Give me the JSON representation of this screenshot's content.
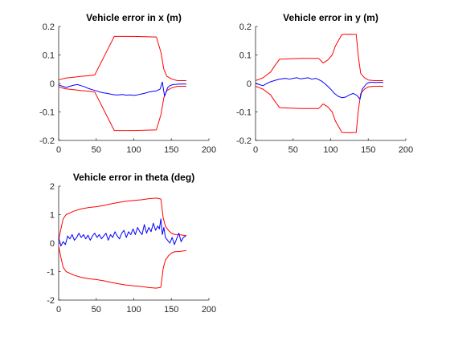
{
  "chart_data": [
    {
      "type": "line",
      "title": "Vehicle error in x (m)",
      "xlabel": "",
      "ylabel": "",
      "xlim": [
        0,
        200
      ],
      "ylim": [
        -0.2,
        0.2
      ],
      "xticks": [
        0,
        50,
        100,
        150,
        200
      ],
      "yticks": [
        0.2,
        0.1,
        0,
        -0.1,
        -0.2
      ],
      "xtick_labels": [
        "0",
        "50",
        "100",
        "150",
        "200"
      ],
      "ytick_labels": [
        "0.2",
        "0.1",
        "0",
        "-0.1",
        "-0.2"
      ],
      "grid": false,
      "series": [
        {
          "color": "#ff0000",
          "x": [
            0,
            5,
            10,
            20,
            30,
            40,
            48,
            74,
            100,
            130,
            136,
            140,
            144,
            150,
            158,
            170
          ],
          "y": [
            0.012,
            0.016,
            0.019,
            0.022,
            0.025,
            0.027,
            0.03,
            0.165,
            0.165,
            0.163,
            0.11,
            0.05,
            0.025,
            0.016,
            0.01,
            0.01
          ]
        },
        {
          "color": "#ff0000",
          "x": [
            0,
            5,
            10,
            20,
            30,
            40,
            48,
            74,
            100,
            130,
            136,
            140,
            144,
            150,
            158,
            170
          ],
          "y": [
            -0.012,
            -0.016,
            -0.019,
            -0.022,
            -0.025,
            -0.027,
            -0.03,
            -0.165,
            -0.165,
            -0.163,
            -0.11,
            -0.05,
            -0.025,
            -0.016,
            -0.01,
            -0.01
          ]
        },
        {
          "color": "#0000ff",
          "x": [
            0,
            5,
            10,
            15,
            20,
            25,
            30,
            35,
            40,
            45,
            50,
            55,
            60,
            65,
            70,
            75,
            80,
            85,
            90,
            95,
            100,
            105,
            110,
            115,
            120,
            125,
            130,
            135,
            138,
            141,
            143,
            145,
            148,
            152,
            156,
            160,
            165,
            170
          ],
          "y": [
            -0.005,
            -0.01,
            -0.014,
            -0.01,
            -0.006,
            -0.004,
            -0.008,
            -0.012,
            -0.018,
            -0.022,
            -0.026,
            -0.03,
            -0.033,
            -0.035,
            -0.038,
            -0.04,
            -0.04,
            -0.039,
            -0.041,
            -0.04,
            -0.042,
            -0.04,
            -0.037,
            -0.034,
            -0.03,
            -0.028,
            -0.026,
            -0.02,
            0.005,
            -0.045,
            -0.03,
            -0.015,
            -0.008,
            -0.004,
            -0.003,
            -0.002,
            -0.002,
            -0.002
          ]
        }
      ]
    },
    {
      "type": "line",
      "title": "Vehicle error in y (m)",
      "xlabel": "",
      "ylabel": "",
      "xlim": [
        0,
        200
      ],
      "ylim": [
        -0.2,
        0.2
      ],
      "xticks": [
        0,
        50,
        100,
        150,
        200
      ],
      "yticks": [
        0.2,
        0.1,
        0,
        -0.1,
        -0.2
      ],
      "xtick_labels": [
        "0",
        "50",
        "100",
        "150",
        "200"
      ],
      "ytick_labels": [
        "0.2",
        "0.1",
        "0",
        "-0.1",
        "-0.2"
      ],
      "grid": false,
      "series": [
        {
          "color": "#ff0000",
          "x": [
            0,
            5,
            10,
            15,
            20,
            25,
            32,
            60,
            84,
            90,
            96,
            102,
            106,
            115,
            125,
            134,
            137,
            140,
            145,
            150,
            158,
            170
          ],
          "y": [
            0.01,
            0.015,
            0.02,
            0.03,
            0.04,
            0.06,
            0.085,
            0.088,
            0.088,
            0.072,
            0.082,
            0.1,
            0.13,
            0.172,
            0.173,
            0.172,
            0.09,
            0.035,
            0.02,
            0.012,
            0.01,
            0.01
          ]
        },
        {
          "color": "#ff0000",
          "x": [
            0,
            5,
            10,
            15,
            20,
            25,
            32,
            60,
            84,
            90,
            96,
            102,
            106,
            115,
            125,
            134,
            137,
            140,
            145,
            150,
            158,
            170
          ],
          "y": [
            -0.01,
            -0.015,
            -0.02,
            -0.03,
            -0.04,
            -0.06,
            -0.085,
            -0.088,
            -0.088,
            -0.072,
            -0.082,
            -0.1,
            -0.13,
            -0.172,
            -0.173,
            -0.172,
            -0.09,
            -0.035,
            -0.02,
            -0.012,
            -0.01,
            -0.01
          ]
        },
        {
          "color": "#0000ff",
          "x": [
            0,
            5,
            10,
            15,
            20,
            25,
            30,
            35,
            40,
            45,
            50,
            55,
            60,
            65,
            70,
            75,
            80,
            85,
            88,
            92,
            96,
            100,
            105,
            110,
            115,
            120,
            125,
            130,
            135,
            139,
            142,
            145,
            148,
            152,
            156,
            160,
            165,
            170
          ],
          "y": [
            0.0,
            -0.004,
            -0.008,
            0.0,
            0.006,
            0.01,
            0.014,
            0.016,
            0.018,
            0.015,
            0.018,
            0.02,
            0.016,
            0.018,
            0.02,
            0.015,
            0.018,
            0.012,
            0.008,
            0.0,
            -0.01,
            -0.02,
            -0.035,
            -0.045,
            -0.05,
            -0.048,
            -0.04,
            -0.035,
            -0.042,
            -0.055,
            -0.02,
            -0.01,
            0.0,
            0.004,
            0.004,
            0.003,
            0.004,
            0.004
          ]
        }
      ]
    },
    {
      "type": "line",
      "title": "Vehicle error in theta (deg)",
      "xlabel": "",
      "ylabel": "",
      "xlim": [
        0,
        200
      ],
      "ylim": [
        -2,
        2
      ],
      "xticks": [
        0,
        50,
        100,
        150,
        200
      ],
      "yticks": [
        2,
        1,
        0,
        -1,
        -2
      ],
      "xtick_labels": [
        "0",
        "50",
        "100",
        "150",
        "200"
      ],
      "ytick_labels": [
        "2",
        "1",
        "0",
        "-1",
        "-2"
      ],
      "grid": false,
      "series": [
        {
          "color": "#ff0000",
          "x": [
            0,
            3,
            6,
            10,
            20,
            30,
            40,
            50,
            60,
            70,
            80,
            90,
            100,
            110,
            120,
            130,
            136,
            139,
            142,
            146,
            150,
            155,
            160,
            165,
            170
          ],
          "y": [
            0.1,
            0.5,
            0.85,
            1.0,
            1.12,
            1.2,
            1.25,
            1.28,
            1.32,
            1.38,
            1.43,
            1.47,
            1.5,
            1.52,
            1.56,
            1.58,
            1.55,
            0.9,
            0.6,
            0.45,
            0.35,
            0.3,
            0.3,
            0.28,
            0.26
          ]
        },
        {
          "color": "#ff0000",
          "x": [
            0,
            3,
            6,
            10,
            20,
            30,
            40,
            50,
            60,
            70,
            80,
            90,
            100,
            110,
            120,
            130,
            136,
            139,
            142,
            146,
            150,
            155,
            160,
            165,
            170
          ],
          "y": [
            -0.1,
            -0.5,
            -0.85,
            -1.0,
            -1.12,
            -1.2,
            -1.25,
            -1.28,
            -1.32,
            -1.38,
            -1.43,
            -1.47,
            -1.5,
            -1.52,
            -1.56,
            -1.58,
            -1.55,
            -0.9,
            -0.6,
            -0.45,
            -0.35,
            -0.3,
            -0.3,
            -0.28,
            -0.26
          ]
        },
        {
          "color": "#0000ff",
          "x": [
            0,
            3,
            6,
            9,
            12,
            15,
            18,
            21,
            24,
            27,
            30,
            33,
            36,
            39,
            42,
            45,
            48,
            51,
            54,
            57,
            60,
            63,
            66,
            69,
            72,
            75,
            78,
            81,
            84,
            87,
            90,
            93,
            96,
            99,
            102,
            105,
            108,
            111,
            114,
            117,
            120,
            123,
            126,
            129,
            132,
            134,
            136,
            138,
            140,
            142,
            145,
            148,
            151,
            154,
            157,
            160,
            163,
            166,
            169
          ],
          "y": [
            0.2,
            -0.1,
            0.05,
            -0.05,
            0.25,
            0.15,
            0.3,
            0.1,
            0.2,
            0.35,
            0.2,
            0.3,
            0.15,
            0.28,
            0.1,
            0.25,
            0.35,
            0.2,
            0.3,
            0.15,
            0.25,
            0.35,
            0.1,
            0.3,
            0.2,
            0.4,
            0.25,
            0.15,
            0.35,
            0.45,
            0.2,
            0.4,
            0.3,
            0.5,
            0.3,
            0.55,
            0.4,
            0.3,
            0.65,
            0.35,
            0.55,
            0.4,
            0.7,
            0.45,
            0.6,
            0.5,
            0.85,
            0.3,
            0.55,
            0.2,
            0.1,
            0.0,
            0.2,
            -0.05,
            0.15,
            0.35,
            0.05,
            0.2,
            0.25
          ]
        }
      ]
    }
  ]
}
